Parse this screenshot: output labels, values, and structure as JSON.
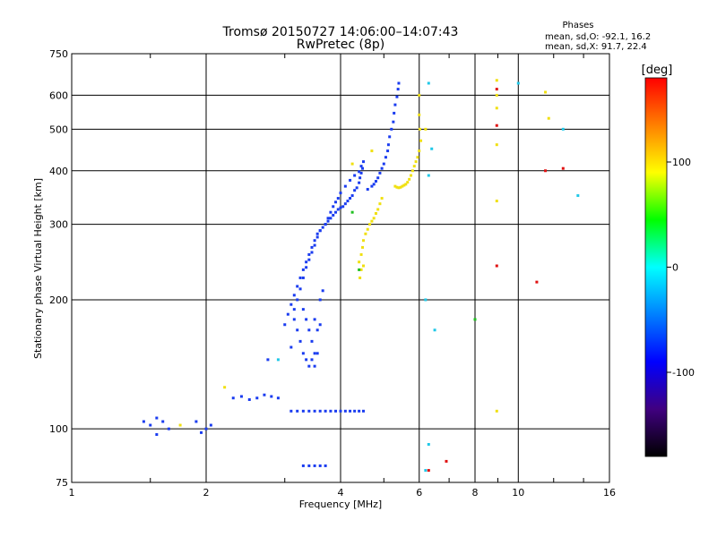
{
  "chart_data": {
    "type": "scatter",
    "title": "Tromsø 20150727 14:06:00–14:07:43",
    "subtitle": "RwPretec (8p)",
    "xlabel": "Frequency [MHz]",
    "ylabel": "Stationary phase Virtual Height [km]",
    "x_scale": "log",
    "y_scale": "log",
    "xlim": [
      1,
      16
    ],
    "ylim": [
      75,
      750
    ],
    "x_ticks": [
      1,
      2,
      4,
      6,
      8,
      10,
      16
    ],
    "x_tick_labels": [
      "1",
      "2",
      "4",
      "6",
      "8",
      "10",
      "16"
    ],
    "y_ticks": [
      75,
      100,
      200,
      300,
      400,
      500,
      600,
      750
    ],
    "y_tick_labels": [
      "75",
      "100",
      "200",
      "300",
      "400",
      "500",
      "600",
      "750"
    ],
    "grid": true,
    "phases_header": "Phases",
    "phases_stats": [
      "mean, sd,O: -92.1, 16.2",
      "mean, sd,X: 91.7, 22.4"
    ],
    "colorbar": {
      "label": "[deg]",
      "range": [
        -180,
        180
      ],
      "tick_labels": [
        "100",
        "0",
        "-100"
      ],
      "tick_values": [
        100,
        0,
        -100
      ],
      "colors": [
        "#ff0000",
        "#ff8000",
        "#ffff00",
        "#00ff00",
        "#00ffff",
        "#0080ff",
        "#0000ff",
        "#400080",
        "#000000"
      ]
    },
    "series": [
      {
        "points": [
          [
            5.4,
            640
          ],
          [
            5.38,
            620
          ],
          [
            5.35,
            595
          ],
          [
            5.3,
            570
          ],
          [
            5.27,
            545
          ],
          [
            5.25,
            520
          ],
          [
            5.2,
            500
          ],
          [
            5.15,
            480
          ],
          [
            5.12,
            460
          ],
          [
            5.1,
            445
          ],
          [
            5.05,
            430
          ],
          [
            5.0,
            415
          ],
          [
            4.95,
            405
          ],
          [
            4.9,
            395
          ],
          [
            4.85,
            385
          ],
          [
            4.8,
            378
          ],
          [
            4.75,
            372
          ],
          [
            4.7,
            368
          ],
          [
            4.6,
            362
          ],
          [
            4.5,
            420
          ],
          [
            4.48,
            405
          ],
          [
            4.45,
            395
          ],
          [
            4.42,
            385
          ],
          [
            4.4,
            375
          ],
          [
            4.35,
            365
          ],
          [
            4.3,
            360
          ],
          [
            4.25,
            350
          ],
          [
            4.2,
            345
          ],
          [
            4.15,
            340
          ],
          [
            4.1,
            335
          ],
          [
            4.05,
            330
          ],
          [
            4.0,
            328
          ],
          [
            3.95,
            325
          ],
          [
            3.9,
            320
          ],
          [
            3.85,
            315
          ],
          [
            3.8,
            310
          ],
          [
            3.75,
            305
          ],
          [
            3.7,
            300
          ],
          [
            3.65,
            295
          ],
          [
            3.6,
            290
          ],
          [
            3.55,
            285
          ],
          [
            3.5,
            275
          ],
          [
            3.45,
            265
          ],
          [
            3.4,
            255
          ],
          [
            3.35,
            245
          ],
          [
            3.3,
            235
          ],
          [
            3.25,
            225
          ],
          [
            3.2,
            215
          ],
          [
            3.15,
            205
          ],
          [
            3.1,
            195
          ],
          [
            3.05,
            185
          ],
          [
            3.0,
            175
          ],
          [
            4.45,
            410
          ],
          [
            4.4,
            398
          ],
          [
            4.3,
            390
          ],
          [
            4.2,
            380
          ],
          [
            4.1,
            368
          ],
          [
            4.0,
            355
          ],
          [
            3.95,
            345
          ],
          [
            3.9,
            338
          ],
          [
            3.85,
            330
          ],
          [
            3.8,
            320
          ],
          [
            3.75,
            310
          ],
          [
            3.7,
            300
          ],
          [
            3.6,
            290
          ],
          [
            3.55,
            280
          ],
          [
            3.5,
            268
          ],
          [
            3.45,
            258
          ],
          [
            3.4,
            248
          ],
          [
            3.35,
            238
          ],
          [
            3.3,
            225
          ],
          [
            3.25,
            212
          ],
          [
            3.2,
            200
          ],
          [
            3.15,
            190
          ],
          [
            3.3,
            190
          ],
          [
            3.35,
            180
          ],
          [
            3.4,
            170
          ],
          [
            3.45,
            160
          ],
          [
            3.5,
            150
          ],
          [
            3.3,
            150
          ],
          [
            3.25,
            160
          ],
          [
            3.2,
            170
          ],
          [
            3.15,
            180
          ],
          [
            3.1,
            155
          ],
          [
            3.35,
            145
          ],
          [
            3.4,
            140
          ],
          [
            3.45,
            145
          ],
          [
            3.5,
            140
          ],
          [
            3.55,
            150
          ],
          [
            3.55,
            170
          ],
          [
            3.5,
            180
          ],
          [
            3.6,
            175
          ],
          [
            3.6,
            200
          ],
          [
            3.65,
            210
          ],
          [
            3.1,
            110
          ],
          [
            3.2,
            110
          ],
          [
            3.3,
            110
          ],
          [
            3.4,
            110
          ],
          [
            3.5,
            110
          ],
          [
            3.6,
            110
          ],
          [
            3.7,
            110
          ],
          [
            3.8,
            110
          ],
          [
            3.9,
            110
          ],
          [
            4.0,
            110
          ],
          [
            4.1,
            110
          ],
          [
            4.2,
            110
          ],
          [
            4.3,
            110
          ],
          [
            4.4,
            110
          ],
          [
            4.5,
            110
          ],
          [
            3.3,
            82
          ],
          [
            3.4,
            82
          ],
          [
            3.5,
            82
          ],
          [
            3.6,
            82
          ],
          [
            3.7,
            82
          ],
          [
            2.3,
            118
          ],
          [
            2.4,
            119
          ],
          [
            2.5,
            117
          ],
          [
            2.6,
            118
          ],
          [
            2.7,
            120
          ],
          [
            2.8,
            119
          ],
          [
            2.9,
            118
          ],
          [
            2.75,
            145
          ],
          [
            1.45,
            104
          ],
          [
            1.5,
            102
          ],
          [
            1.55,
            106
          ],
          [
            1.6,
            104
          ],
          [
            1.65,
            100
          ],
          [
            1.55,
            97
          ],
          [
            2.0,
            100
          ],
          [
            2.05,
            102
          ],
          [
            1.9,
            104
          ],
          [
            1.95,
            98
          ]
        ]
      },
      {
        "points": [
          [
            6.0,
            540
          ],
          [
            6.02,
            500
          ],
          [
            6.05,
            470
          ],
          [
            6.0,
            445
          ],
          [
            5.95,
            430
          ],
          [
            5.9,
            420
          ],
          [
            5.85,
            410
          ],
          [
            5.8,
            400
          ],
          [
            5.75,
            390
          ],
          [
            5.7,
            382
          ],
          [
            5.65,
            376
          ],
          [
            5.6,
            372
          ],
          [
            5.55,
            370
          ],
          [
            5.5,
            368
          ],
          [
            5.45,
            366
          ],
          [
            5.4,
            365
          ],
          [
            5.35,
            366
          ],
          [
            5.3,
            368
          ],
          [
            4.95,
            345
          ],
          [
            4.9,
            335
          ],
          [
            4.85,
            325
          ],
          [
            4.8,
            318
          ],
          [
            4.75,
            310
          ],
          [
            4.7,
            305
          ],
          [
            4.65,
            300
          ],
          [
            4.6,
            292
          ],
          [
            4.55,
            285
          ],
          [
            4.5,
            275
          ],
          [
            4.48,
            265
          ],
          [
            4.45,
            255
          ],
          [
            4.4,
            245
          ],
          [
            4.5,
            240
          ],
          [
            4.45,
            235
          ],
          [
            4.42,
            225
          ],
          [
            6.2,
            500
          ],
          [
            6.0,
            600
          ],
          [
            8.95,
            650
          ],
          [
            8.95,
            600
          ],
          [
            8.95,
            560
          ],
          [
            8.95,
            460
          ],
          [
            8.95,
            340
          ],
          [
            11.5,
            610
          ],
          [
            11.7,
            530
          ],
          [
            2.2,
            125
          ],
          [
            1.75,
            102
          ],
          [
            4.7,
            445
          ],
          [
            4.25,
            415
          ],
          [
            8.95,
            110
          ]
        ]
      },
      {
        "points": [
          [
            8.95,
            620
          ],
          [
            8.95,
            510
          ],
          [
            8.95,
            240
          ],
          [
            6.3,
            80
          ],
          [
            6.9,
            84
          ],
          [
            11.0,
            220
          ],
          [
            11.5,
            400
          ],
          [
            12.6,
            405
          ]
        ]
      },
      {
        "points": [
          [
            4.4,
            235
          ],
          [
            8.0,
            180
          ],
          [
            4.25,
            320
          ]
        ]
      },
      {
        "points": [
          [
            6.3,
            640
          ],
          [
            6.4,
            450
          ],
          [
            6.3,
            390
          ],
          [
            13.6,
            350
          ],
          [
            6.2,
            200
          ],
          [
            6.5,
            170
          ],
          [
            2.9,
            145
          ],
          [
            6.3,
            92
          ],
          [
            6.2,
            80
          ],
          [
            10.0,
            640
          ],
          [
            12.6,
            500
          ]
        ]
      }
    ]
  }
}
